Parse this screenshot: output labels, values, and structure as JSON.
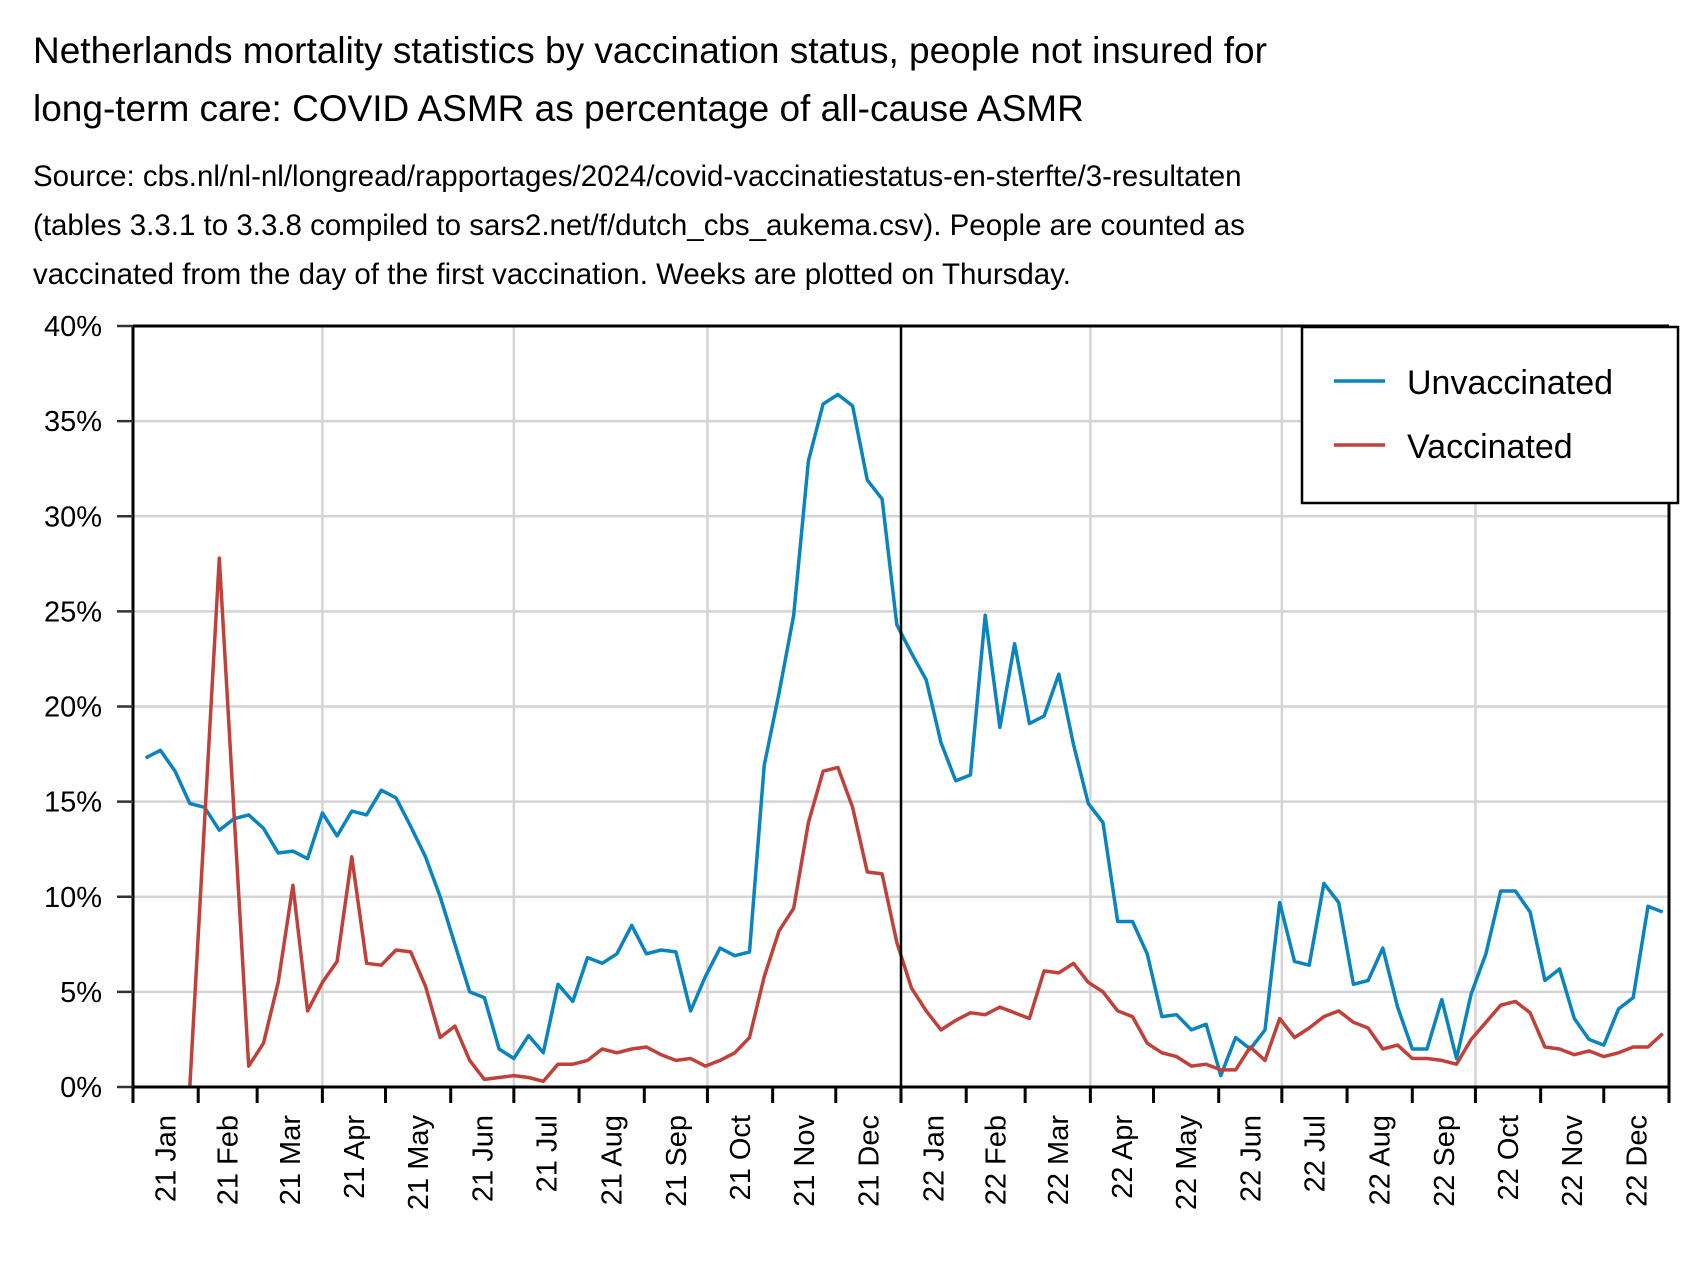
{
  "title_lines": [
    "Netherlands mortality statistics by vaccination status, people not insured for",
    "long-term care: COVID ASMR as percentage of all-cause ASMR"
  ],
  "subtitle_lines": [
    "Source: cbs.nl/nl-nl/longread/rapportages/2024/covid-vaccinatiestatus-en-sterfte/3-resultaten",
    "(tables 3.3.1 to 3.3.8 compiled to sars2.net/f/dutch_cbs_aukema.csv). People are counted as",
    "vaccinated from the day of the first vaccination. Weeks are plotted on Thursday."
  ],
  "chart_data": {
    "type": "line",
    "title": "Netherlands mortality statistics by vaccination status, people not insured for long-term care: COVID ASMR as percentage of all-cause ASMR",
    "xlabel": "",
    "ylabel": "",
    "x_domain": [
      "2021-01-01",
      "2023-01-01"
    ],
    "x_first": "2021-01-07",
    "x_step_days": 7,
    "x_tick_labels": [
      "21 Jan",
      "21 Feb",
      "21 Mar",
      "21 Apr",
      "21 May",
      "21 Jun",
      "21 Jul",
      "21 Aug",
      "21 Sep",
      "21 Oct",
      "21 Nov",
      "21 Dec",
      "22 Jan",
      "22 Feb",
      "22 Mar",
      "22 Apr",
      "22 May",
      "22 Jun",
      "22 Jul",
      "22 Aug",
      "22 Sep",
      "22 Oct",
      "22 Nov",
      "22 Dec"
    ],
    "x_tick_dates": [
      "2021-01-01",
      "2021-02-01",
      "2021-03-01",
      "2021-04-01",
      "2021-05-01",
      "2021-06-01",
      "2021-07-01",
      "2021-08-01",
      "2021-09-01",
      "2021-10-01",
      "2021-11-01",
      "2021-12-01",
      "2022-01-01",
      "2022-02-01",
      "2022-03-01",
      "2022-04-01",
      "2022-05-01",
      "2022-06-01",
      "2022-07-01",
      "2022-08-01",
      "2022-09-01",
      "2022-10-01",
      "2022-11-01",
      "2022-12-01",
      "2023-01-01"
    ],
    "x_grid_dates": [
      "2021-04-01",
      "2021-07-01",
      "2021-10-01",
      "2022-04-01",
      "2022-07-01",
      "2022-10-01"
    ],
    "year_divider_date": "2022-01-01",
    "ylim": [
      0,
      40
    ],
    "y_ticks": [
      0,
      5,
      10,
      15,
      20,
      25,
      30,
      35,
      40
    ],
    "y_tick_labels": [
      "0%",
      "5%",
      "10%",
      "15%",
      "20%",
      "25%",
      "30%",
      "35%",
      "40%"
    ],
    "grid": true,
    "legend_position": "top-right",
    "series": [
      {
        "name": "Unvaccinated",
        "color": "#0a84bf",
        "values": [
          17.3,
          17.7,
          16.6,
          14.9,
          14.7,
          13.5,
          14.1,
          14.3,
          13.6,
          12.3,
          12.4,
          12.0,
          14.4,
          13.2,
          14.5,
          14.3,
          15.6,
          15.2,
          13.7,
          12.1,
          10.0,
          7.5,
          5.0,
          4.7,
          2.0,
          1.5,
          2.7,
          1.8,
          5.4,
          4.5,
          6.8,
          6.5,
          7.0,
          8.5,
          7.0,
          7.2,
          7.1,
          4.0,
          5.8,
          7.3,
          6.9,
          7.1,
          16.9,
          20.7,
          24.8,
          32.9,
          35.9,
          36.4,
          35.8,
          31.9,
          30.9,
          24.3,
          22.8,
          21.4,
          18.1,
          16.1,
          16.4,
          24.8,
          18.9,
          23.3,
          19.1,
          19.5,
          21.7,
          18.0,
          14.9,
          13.9,
          8.7,
          8.7,
          7.0,
          3.7,
          3.8,
          3.0,
          3.3,
          0.6,
          2.6,
          2.0,
          3.0,
          9.7,
          6.6,
          6.4,
          10.7,
          9.7,
          5.4,
          5.6,
          7.3,
          4.2,
          2.0,
          2.0,
          4.6,
          1.5,
          4.9,
          7.0,
          10.3,
          10.3,
          9.2,
          5.6,
          6.2,
          3.6,
          2.5,
          2.2,
          4.1,
          4.7,
          9.5,
          9.2
        ]
      },
      {
        "name": "Vaccinated",
        "color": "#c0413a",
        "values": [
          null,
          null,
          null,
          0.0,
          13.9,
          27.8,
          14.4,
          1.1,
          2.3,
          5.5,
          10.6,
          4.0,
          5.5,
          6.6,
          12.1,
          6.5,
          6.4,
          7.2,
          7.1,
          5.3,
          2.6,
          3.2,
          1.4,
          0.4,
          0.5,
          0.6,
          0.5,
          0.3,
          1.2,
          1.2,
          1.4,
          2.0,
          1.8,
          2.0,
          2.1,
          1.7,
          1.4,
          1.5,
          1.1,
          1.4,
          1.8,
          2.6,
          5.8,
          8.2,
          9.4,
          13.9,
          16.6,
          16.8,
          14.7,
          11.3,
          11.2,
          7.6,
          5.2,
          4.0,
          3.0,
          3.5,
          3.9,
          3.8,
          4.2,
          3.9,
          3.6,
          6.1,
          6.0,
          6.5,
          5.5,
          5.0,
          4.0,
          3.7,
          2.3,
          1.8,
          1.6,
          1.1,
          1.2,
          0.9,
          0.9,
          2.1,
          1.4,
          3.6,
          2.6,
          3.1,
          3.7,
          4.0,
          3.4,
          3.1,
          2.0,
          2.2,
          1.5,
          1.5,
          1.4,
          1.2,
          2.5,
          3.4,
          4.3,
          4.5,
          3.9,
          2.1,
          2.0,
          1.7,
          1.9,
          1.6,
          1.8,
          2.1,
          2.1,
          2.8
        ]
      }
    ]
  }
}
